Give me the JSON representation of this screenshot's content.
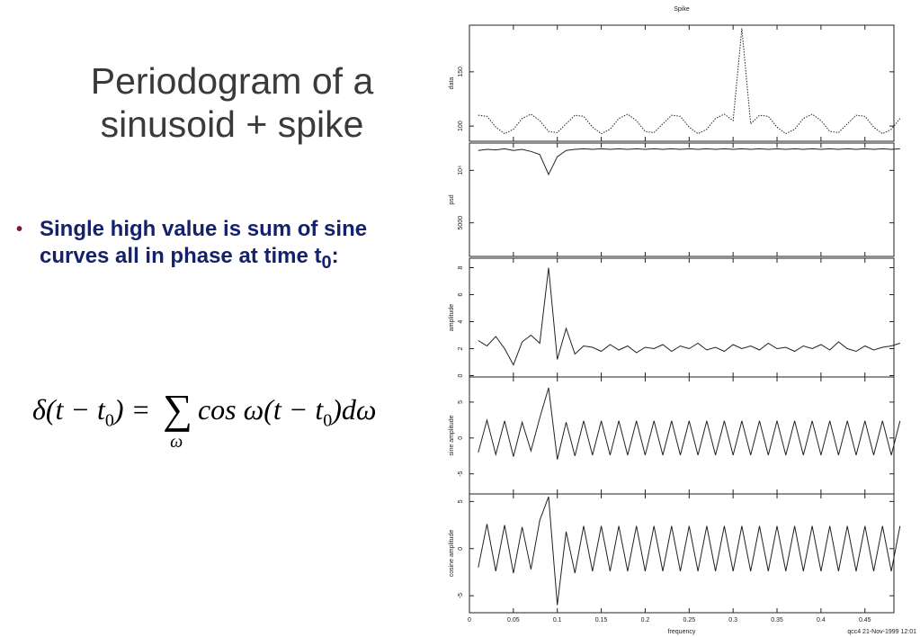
{
  "slide": {
    "title": "Periodogram of a sinusoid + spike",
    "bullet": {
      "text": "Single high value is sum of sine curves all in phase at time t",
      "subscript": "0",
      "end": ":"
    },
    "equation": [
      "δ(t − t",
      "0",
      ") = ",
      "∑",
      "ω",
      "cos ω(t − t",
      "0",
      ")dω"
    ]
  },
  "footer": "qcc4 21-Nov-1999 12:01",
  "chart_data": [
    {
      "type": "line",
      "title": "Spike",
      "ylabel": "data",
      "color": "#222",
      "dashed": true,
      "xlim": [
        0,
        0.483
      ],
      "ylim": [
        86,
        193
      ],
      "yticks": [
        100,
        150
      ],
      "x": [
        0.01,
        0.02,
        0.03,
        0.04,
        0.05,
        0.06,
        0.07,
        0.08,
        0.09,
        0.1,
        0.11,
        0.12,
        0.13,
        0.14,
        0.15,
        0.16,
        0.17,
        0.18,
        0.19,
        0.2,
        0.21,
        0.22,
        0.23,
        0.24,
        0.25,
        0.26,
        0.27,
        0.28,
        0.29,
        0.3,
        0.31,
        0.32,
        0.33,
        0.34,
        0.35,
        0.36,
        0.37,
        0.38,
        0.39,
        0.4,
        0.41,
        0.42,
        0.43,
        0.44,
        0.45,
        0.46,
        0.47,
        0.48,
        0.49
      ],
      "values": [
        110,
        109,
        99,
        93,
        97,
        107,
        111,
        105,
        95,
        94,
        102,
        110,
        109,
        99,
        93,
        97,
        107,
        111,
        105,
        95,
        94,
        102,
        110,
        109,
        99,
        93,
        97,
        107,
        111,
        105,
        190,
        102,
        110,
        109,
        99,
        93,
        97,
        107,
        111,
        105,
        95,
        94,
        102,
        110,
        109,
        99,
        93,
        97,
        107
      ]
    },
    {
      "type": "line",
      "ylabel": "psd",
      "color": "#222",
      "xlim": [
        0,
        0.483
      ],
      "ylim": [
        1800,
        12600
      ],
      "yticks": [
        5000,
        {
          "value": 10000,
          "label": "10⁴"
        }
      ],
      "x": [
        0.01,
        0.02,
        0.03,
        0.04,
        0.05,
        0.06,
        0.07,
        0.08,
        0.09,
        0.1,
        0.11,
        0.12,
        0.13,
        0.14,
        0.15,
        0.16,
        0.17,
        0.18,
        0.19,
        0.2,
        0.21,
        0.22,
        0.23,
        0.24,
        0.25,
        0.26,
        0.27,
        0.28,
        0.29,
        0.3,
        0.31,
        0.32,
        0.33,
        0.34,
        0.35,
        0.36,
        0.37,
        0.38,
        0.39,
        0.4,
        0.41,
        0.42,
        0.43,
        0.44,
        0.45,
        0.46,
        0.47,
        0.48,
        0.49
      ],
      "values": [
        11900,
        12000,
        11950,
        12050,
        11900,
        12000,
        11800,
        11500,
        9600,
        11300,
        11900,
        12000,
        12050,
        12000,
        12050,
        12000,
        12050,
        12000,
        12050,
        12000,
        12050,
        12000,
        12050,
        12000,
        12050,
        12000,
        12050,
        12000,
        12050,
        12000,
        12050,
        12000,
        12050,
        12000,
        12050,
        12000,
        12050,
        12000,
        12050,
        12000,
        12050,
        12000,
        12050,
        12000,
        12050,
        12000,
        12050,
        12000,
        12050
      ]
    },
    {
      "type": "line",
      "ylabel": "amplitude",
      "color": "#222",
      "xlim": [
        0,
        0.483
      ],
      "ylim": [
        -0.1,
        8.7
      ],
      "yticks": [
        0,
        2,
        4,
        6,
        8
      ],
      "x": [
        0.01,
        0.02,
        0.03,
        0.04,
        0.05,
        0.06,
        0.07,
        0.08,
        0.09,
        0.1,
        0.11,
        0.12,
        0.13,
        0.14,
        0.15,
        0.16,
        0.17,
        0.18,
        0.19,
        0.2,
        0.21,
        0.22,
        0.23,
        0.24,
        0.25,
        0.26,
        0.27,
        0.28,
        0.29,
        0.3,
        0.31,
        0.32,
        0.33,
        0.34,
        0.35,
        0.36,
        0.37,
        0.38,
        0.39,
        0.4,
        0.41,
        0.42,
        0.43,
        0.44,
        0.45,
        0.46,
        0.47,
        0.48,
        0.49
      ],
      "values": [
        2.6,
        2.2,
        2.9,
        2.0,
        0.8,
        2.5,
        3.0,
        2.4,
        8.0,
        1.2,
        3.5,
        1.6,
        2.2,
        2.1,
        1.8,
        2.3,
        1.9,
        2.2,
        1.7,
        2.1,
        2.0,
        2.3,
        1.8,
        2.2,
        2.0,
        2.4,
        1.9,
        2.1,
        1.8,
        2.3,
        2.0,
        2.2,
        1.9,
        2.4,
        2.0,
        2.1,
        1.8,
        2.2,
        2.0,
        2.3,
        1.9,
        2.5,
        2.0,
        1.8,
        2.2,
        1.9,
        2.1,
        2.2,
        2.4
      ]
    },
    {
      "type": "line",
      "ylabel": "sine amplitude",
      "color": "#222",
      "xlim": [
        0,
        0.483
      ],
      "ylim": [
        -7.8,
        8.5
      ],
      "yticks": [
        -5,
        0,
        5
      ],
      "x": [
        0.01,
        0.02,
        0.03,
        0.04,
        0.05,
        0.06,
        0.07,
        0.08,
        0.09,
        0.1,
        0.11,
        0.12,
        0.13,
        0.14,
        0.15,
        0.16,
        0.17,
        0.18,
        0.19,
        0.2,
        0.21,
        0.22,
        0.23,
        0.24,
        0.25,
        0.26,
        0.27,
        0.28,
        0.29,
        0.3,
        0.31,
        0.32,
        0.33,
        0.34,
        0.35,
        0.36,
        0.37,
        0.38,
        0.39,
        0.4,
        0.41,
        0.42,
        0.43,
        0.44,
        0.45,
        0.46,
        0.47,
        0.48,
        0.49
      ],
      "values": [
        -2.0,
        2.5,
        -2.3,
        2.4,
        -2.6,
        2.2,
        -1.8,
        2.8,
        7.0,
        -3.0,
        2.2,
        -2.5,
        2.4,
        -2.4,
        2.4,
        -2.4,
        2.4,
        -2.4,
        2.4,
        -2.4,
        2.4,
        -2.4,
        2.4,
        -2.4,
        2.4,
        -2.4,
        2.4,
        -2.4,
        2.4,
        -2.4,
        2.4,
        -2.4,
        2.4,
        -2.4,
        2.4,
        -2.4,
        2.4,
        -2.4,
        2.4,
        -2.4,
        2.4,
        -2.4,
        2.4,
        -2.4,
        2.4,
        -2.4,
        2.4,
        -2.4,
        2.4
      ]
    },
    {
      "type": "line",
      "ylabel": "cosine amplitude",
      "color": "#222",
      "xlim": [
        0,
        0.483
      ],
      "ylim": [
        -6.8,
        5.8
      ],
      "yticks": [
        -5,
        0,
        5
      ],
      "xlabel": "frequency",
      "xticks": [
        0,
        0.05,
        0.1,
        0.15,
        0.2,
        0.25,
        0.3,
        0.35,
        0.4,
        0.45
      ],
      "x": [
        0.01,
        0.02,
        0.03,
        0.04,
        0.05,
        0.06,
        0.07,
        0.08,
        0.09,
        0.1,
        0.11,
        0.12,
        0.13,
        0.14,
        0.15,
        0.16,
        0.17,
        0.18,
        0.19,
        0.2,
        0.21,
        0.22,
        0.23,
        0.24,
        0.25,
        0.26,
        0.27,
        0.28,
        0.29,
        0.3,
        0.31,
        0.32,
        0.33,
        0.34,
        0.35,
        0.36,
        0.37,
        0.38,
        0.39,
        0.4,
        0.41,
        0.42,
        0.43,
        0.44,
        0.45,
        0.46,
        0.47,
        0.48,
        0.49
      ],
      "values": [
        -2.0,
        2.6,
        -2.4,
        2.5,
        -2.6,
        2.3,
        -2.2,
        3.0,
        5.5,
        -6.0,
        1.8,
        -2.6,
        2.4,
        -2.4,
        2.4,
        -2.4,
        2.4,
        -2.4,
        2.4,
        -2.4,
        2.4,
        -2.4,
        2.4,
        -2.4,
        2.4,
        -2.4,
        2.4,
        -2.4,
        2.4,
        -2.4,
        2.4,
        -2.4,
        2.4,
        -2.4,
        2.4,
        -2.4,
        2.4,
        -2.4,
        2.4,
        -2.4,
        2.4,
        -2.4,
        2.4,
        -2.4,
        2.4,
        -2.4,
        2.4,
        -2.4,
        2.4
      ]
    }
  ]
}
